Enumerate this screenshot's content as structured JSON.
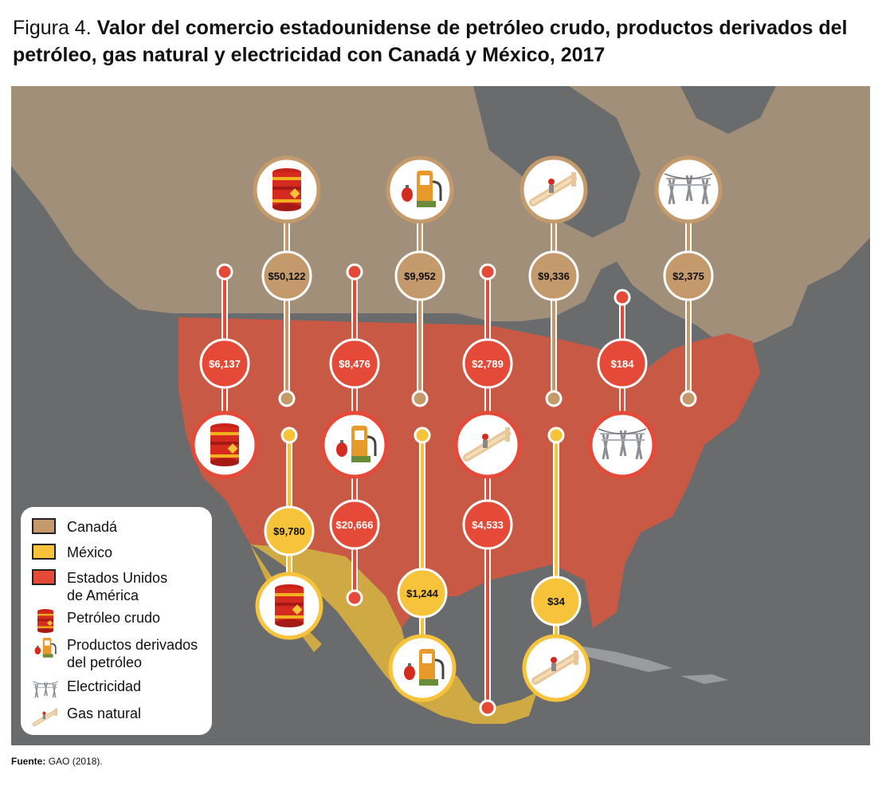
{
  "title": {
    "figure_label": "Figura 4.",
    "text": "Valor del comercio estadounidense de petróleo crudo, productos derivados del petróleo, gas natural y electricidad con Canadá y México, 2017"
  },
  "source": {
    "label": "Fuente:",
    "text": "GAO (2018)."
  },
  "colors": {
    "canada": "#c49a6c",
    "mexico": "#f6c33b",
    "usa": "#e44a37",
    "ocean": "#6a6b6c",
    "land_canada": "#a28f79",
    "land_usa": "#c85a45",
    "land_mexico": "#cfa944"
  },
  "legend": {
    "canada": "Canadá",
    "mexico": "México",
    "usa_line1": "Estados Unidos",
    "usa_line2": "de América",
    "crude": "Petróleo crudo",
    "products_line1": "Productos derivados",
    "products_line2": "del petróleo",
    "electricity": "Electricidad",
    "gas": "Gas natural"
  },
  "trade": {
    "canada": {
      "crude_oil": "$50,122",
      "petroleum_products": "$9,952",
      "natural_gas": "$9,336",
      "electricity": "$2,375"
    },
    "usa_to_canada": {
      "crude_oil": "$6,137",
      "petroleum_products": "$8,476",
      "natural_gas": "$2,789",
      "electricity": "$184"
    },
    "mexico": {
      "crude_oil": "$9,780",
      "petroleum_products": "$1,244",
      "natural_gas": "$34"
    },
    "usa_to_mexico": {
      "petroleum_products": "$20,666",
      "natural_gas": "$4,533"
    }
  },
  "icons": {
    "crude_oil": "oil-barrel-icon",
    "petroleum_products": "fuel-pump-icon",
    "natural_gas": "gas-pipeline-icon",
    "electricity": "power-tower-icon"
  }
}
